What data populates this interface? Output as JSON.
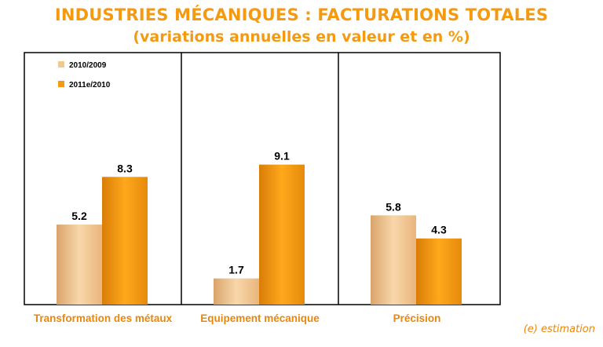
{
  "title": "INDUSTRIES MÉCANIQUES : FACTURATIONS TOTALES",
  "subtitle": "(variations annuelles en valeur et en %)",
  "footnote": "(e) estimation",
  "colors": {
    "title": "#f59a0f",
    "series_2010": "#f3c78f",
    "series_2011": "#f29a12",
    "category_text": "#e8870c"
  },
  "chart_data": {
    "type": "bar",
    "title": "INDUSTRIES MÉCANIQUES : FACTURATIONS TOTALES",
    "subtitle": "(variations annuelles en valeur et en %)",
    "categories": [
      "Transformation des métaux",
      "Equipement mécanique",
      "Précision"
    ],
    "series": [
      {
        "name": "2010/2009",
        "values": [
          5.2,
          1.7,
          5.8
        ]
      },
      {
        "name": "2011e/2010",
        "values": [
          8.3,
          9.1,
          4.3
        ]
      }
    ],
    "data_labels": [
      [
        "5.2",
        "1.7",
        "5.8"
      ],
      [
        "8.3",
        "9.1",
        "4.3"
      ]
    ],
    "ylim": [
      0,
      12
    ],
    "grid": false,
    "legend": "top-left"
  }
}
